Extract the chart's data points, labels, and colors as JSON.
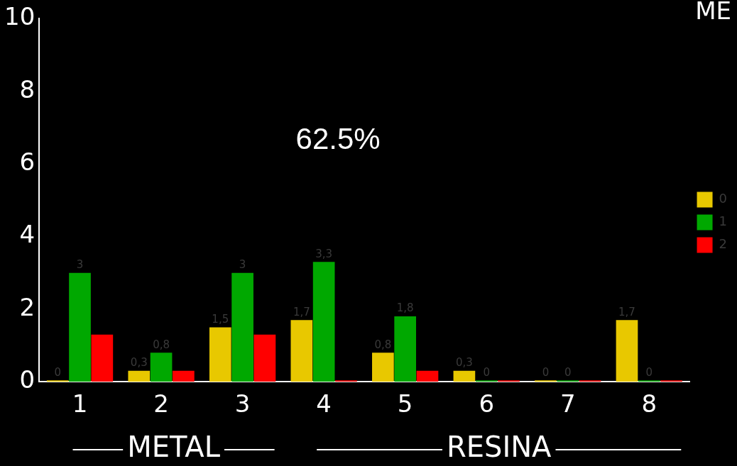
{
  "chart_data": {
    "type": "bar",
    "title": "ME",
    "categories": [
      "1",
      "2",
      "3",
      "4",
      "5",
      "6",
      "7",
      "8"
    ],
    "series": [
      {
        "name": "0",
        "color": "#e8c800",
        "values": [
          0,
          0.3,
          1.5,
          1.7,
          0.8,
          0.3,
          0,
          1.7
        ],
        "value_labels": [
          "0",
          "0,3",
          "1,5",
          "1,7",
          "0,8",
          "0,3",
          "0",
          "1,7"
        ]
      },
      {
        "name": "1",
        "color": "#00a800",
        "values": [
          3,
          0.8,
          3,
          3.3,
          1.8,
          0,
          0,
          0
        ],
        "value_labels": [
          "3",
          "0,8",
          "3",
          "3,3",
          "1,8",
          "0",
          "0",
          "0"
        ]
      },
      {
        "name": "2",
        "color": "#ff0000",
        "values": [
          1.3,
          0.3,
          1.3,
          0,
          0.3,
          0,
          0,
          0
        ],
        "value_labels": [
          null,
          null,
          null,
          null,
          null,
          null,
          null,
          null
        ]
      }
    ],
    "ylim": [
      0,
      10
    ],
    "yticks": [
      0,
      2,
      4,
      6,
      8,
      10
    ],
    "grid": false,
    "legend": "right",
    "annotations": [
      "62.5%",
      "METAL",
      "RESINA"
    ]
  }
}
